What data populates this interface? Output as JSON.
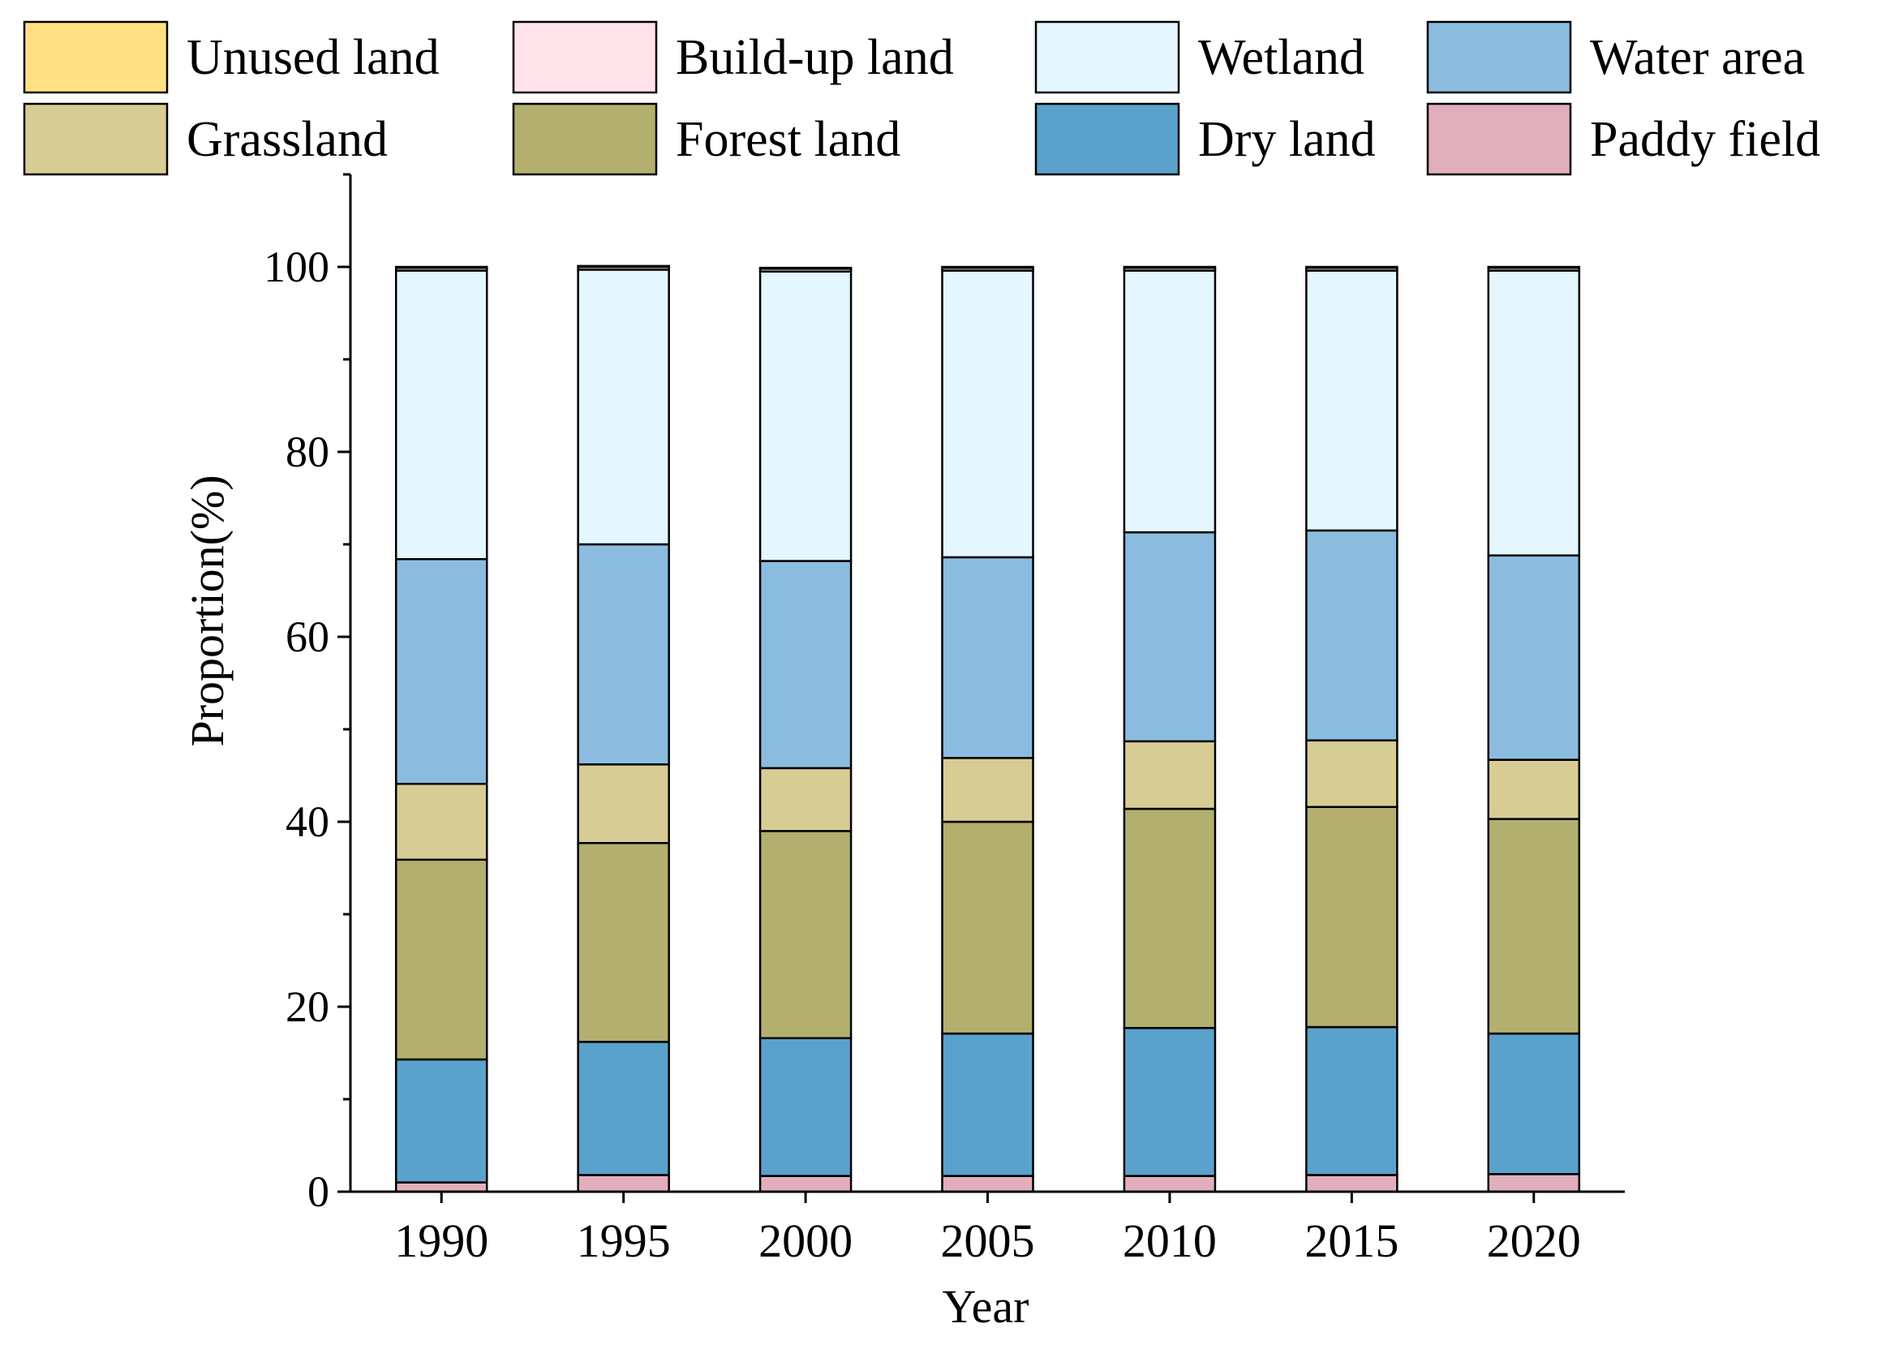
{
  "chart_data": {
    "type": "bar",
    "stacked": true,
    "title": "",
    "xlabel": "Year",
    "ylabel": "Proportion(%)",
    "ylim": [
      0,
      110
    ],
    "yticks": [
      0,
      20,
      40,
      60,
      80,
      100
    ],
    "categories": [
      "1990",
      "1995",
      "2000",
      "2005",
      "2010",
      "2015",
      "2020"
    ],
    "series": [
      {
        "name": "Paddy field",
        "color": "#E1AFBB",
        "values": [
          1.0,
          1.8,
          1.7,
          1.7,
          1.7,
          1.8,
          1.9
        ]
      },
      {
        "name": "Dry land",
        "color": "#5AA2CC",
        "values": [
          13.3,
          14.4,
          14.9,
          15.4,
          16.0,
          16.0,
          15.2
        ]
      },
      {
        "name": "Forest land",
        "color": "#B3AF6E",
        "values": [
          21.6,
          21.5,
          22.4,
          22.9,
          23.7,
          23.8,
          23.2
        ]
      },
      {
        "name": "Grassland",
        "color": "#D8CC95",
        "values": [
          8.2,
          8.5,
          6.8,
          6.9,
          7.3,
          7.2,
          6.4
        ]
      },
      {
        "name": "Water area",
        "color": "#8BBCDF",
        "values": [
          24.3,
          23.8,
          22.4,
          21.7,
          22.6,
          22.7,
          22.1
        ]
      },
      {
        "name": "Wetland",
        "color": "#E4F6FF",
        "values": [
          31.2,
          29.7,
          31.3,
          31.0,
          28.3,
          28.1,
          30.8
        ]
      },
      {
        "name": "Build-up land",
        "color": "#FFE2EA",
        "values": [
          0.3,
          0.3,
          0.3,
          0.3,
          0.3,
          0.3,
          0.3
        ]
      },
      {
        "name": "Unused land",
        "color": "#FFE083",
        "values": [
          0.1,
          0.1,
          0.1,
          0.1,
          0.1,
          0.1,
          0.1
        ]
      }
    ],
    "legend": {
      "position": "top",
      "order": [
        "Unused land",
        "Build-up land",
        "Wetland",
        "Water area",
        "Grassland",
        "Forest land",
        "Dry land",
        "Paddy field"
      ]
    }
  }
}
